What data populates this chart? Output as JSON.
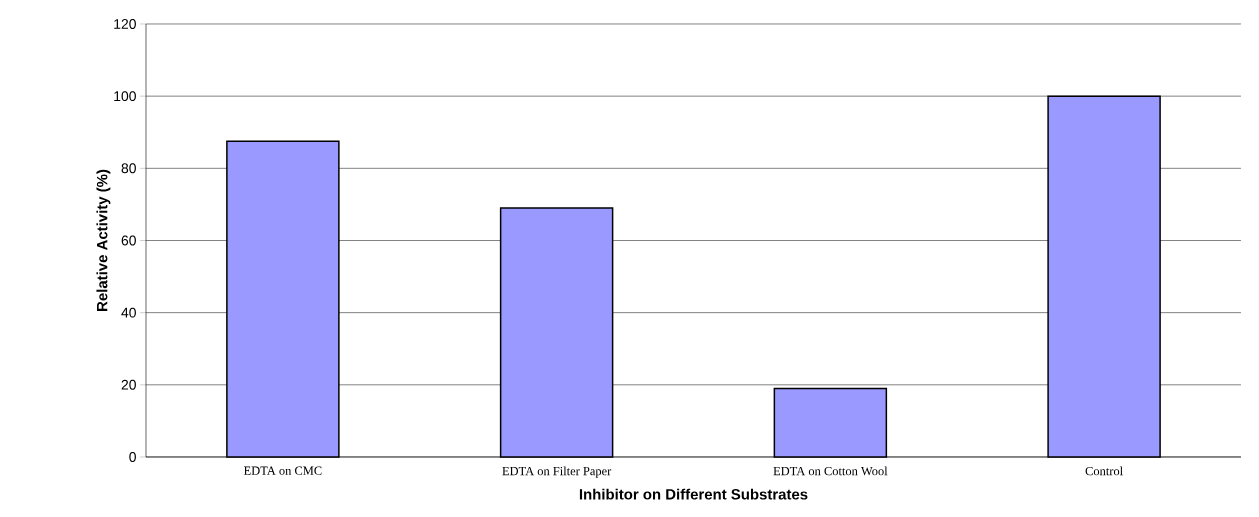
{
  "chart_data": {
    "type": "bar",
    "xlabel": "Inhibitor on Different Substrates",
    "ylabel": "Relative Activity (%)",
    "categories": [
      "EDTA on CMC",
      "EDTA on Filter Paper",
      "EDTA on Cotton Wool",
      "Control"
    ],
    "values": [
      87.5,
      69,
      19,
      100
    ],
    "color": "#9999ff",
    "ylim": [
      0,
      120
    ],
    "yticks": [
      0,
      20,
      40,
      60,
      80,
      100,
      120
    ],
    "grid": "y"
  }
}
